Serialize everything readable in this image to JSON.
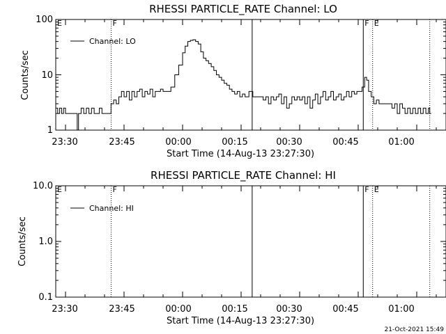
{
  "footer_timestamp": "21-Oct-2021 15:49",
  "chart_data": [
    {
      "type": "line",
      "title": "RHESSI PARTICLE_RATE Channel: LO",
      "xlabel": "Start Time (14-Aug-13 23:27:30)",
      "ylabel": "Counts/sec",
      "y_scale": "log",
      "ylim": [
        1,
        100
      ],
      "xlim": [
        "23:27:30",
        "01:07:30"
      ],
      "x_tick_labels": [
        "23:30",
        "23:45",
        "00:00",
        "00:15",
        "00:30",
        "00:45",
        "01:00"
      ],
      "y_tick_labels": [
        "1",
        "10",
        "100"
      ],
      "legend": {
        "label": "Channel: LO",
        "position": "top-left"
      },
      "markers": [
        {
          "time": "23:27:30",
          "label": "E"
        },
        {
          "time": "23:41:42",
          "label": "F",
          "style": "dotted"
        },
        {
          "time": "00:17:50",
          "label": "",
          "style": "solid"
        },
        {
          "time": "00:46:18",
          "label": "F",
          "style": "solid"
        },
        {
          "time": "00:48:42",
          "label": "E",
          "style": "dotted"
        },
        {
          "time": "01:03:20",
          "label": "",
          "style": "dotted"
        }
      ],
      "series": [
        {
          "name": "Channel: LO",
          "data": [
            [
              "23:27:30",
              2.5
            ],
            [
              "23:28:00",
              2.0
            ],
            [
              "23:28:30",
              2.5
            ],
            [
              "23:29:00",
              2.0
            ],
            [
              "23:29:30",
              2.5
            ],
            [
              "23:30:00",
              2.0
            ],
            [
              "23:31:00",
              2.0
            ],
            [
              "23:32:00",
              2.0
            ],
            [
              "23:32:30",
              2.0
            ],
            [
              "23:33:00",
              1.0
            ],
            [
              "23:33:20",
              2.0
            ],
            [
              "23:34:00",
              2.5
            ],
            [
              "23:34:40",
              2.0
            ],
            [
              "23:35:20",
              2.5
            ],
            [
              "23:36:00",
              2.0
            ],
            [
              "23:36:40",
              2.5
            ],
            [
              "23:37:20",
              2.0
            ],
            [
              "23:38:00",
              2.0
            ],
            [
              "23:38:40",
              2.5
            ],
            [
              "23:39:20",
              2.0
            ],
            [
              "23:40:00",
              2.0
            ],
            [
              "23:41:00",
              2.0
            ],
            [
              "23:41:40",
              3.0
            ],
            [
              "23:42:20",
              3.5
            ],
            [
              "23:43:00",
              3.0
            ],
            [
              "23:43:40",
              4.0
            ],
            [
              "23:44:20",
              5.0
            ],
            [
              "23:45:00",
              4.0
            ],
            [
              "23:45:40",
              5.0
            ],
            [
              "23:46:20",
              3.5
            ],
            [
              "23:47:00",
              5.0
            ],
            [
              "23:47:40",
              4.0
            ],
            [
              "23:48:20",
              5.0
            ],
            [
              "23:49:00",
              5.5
            ],
            [
              "23:49:40",
              4.0
            ],
            [
              "23:50:20",
              5.0
            ],
            [
              "23:51:00",
              4.5
            ],
            [
              "23:51:40",
              5.5
            ],
            [
              "23:52:20",
              4.0
            ],
            [
              "23:53:00",
              5.0
            ],
            [
              "23:53:40",
              5.0
            ],
            [
              "23:54:20",
              5.5
            ],
            [
              "23:55:00",
              5.0
            ],
            [
              "23:56:00",
              5.0
            ],
            [
              "23:57:00",
              6.0
            ],
            [
              "23:58:00",
              10.0
            ],
            [
              "23:59:00",
              15.0
            ],
            [
              "00:00:00",
              25.0
            ],
            [
              "00:00:40",
              33.0
            ],
            [
              "00:01:20",
              40.0
            ],
            [
              "00:02:00",
              42.0
            ],
            [
              "00:02:40",
              43.0
            ],
            [
              "00:03:20",
              40.0
            ],
            [
              "00:04:00",
              36.0
            ],
            [
              "00:04:40",
              26.0
            ],
            [
              "00:05:20",
              20.0
            ],
            [
              "00:06:00",
              18.0
            ],
            [
              "00:06:40",
              16.0
            ],
            [
              "00:07:20",
              14.0
            ],
            [
              "00:08:00",
              12.0
            ],
            [
              "00:08:40",
              10.0
            ],
            [
              "00:09:20",
              9.0
            ],
            [
              "00:10:00",
              8.0
            ],
            [
              "00:10:40",
              7.0
            ],
            [
              "00:11:20",
              6.5
            ],
            [
              "00:12:00",
              5.5
            ],
            [
              "00:12:40",
              5.0
            ],
            [
              "00:13:20",
              4.5
            ],
            [
              "00:14:00",
              5.0
            ],
            [
              "00:14:40",
              4.0
            ],
            [
              "00:15:20",
              4.5
            ],
            [
              "00:16:00",
              4.0
            ],
            [
              "00:17:00",
              5.0
            ],
            [
              "00:18:00",
              4.0
            ],
            [
              "00:19:00",
              4.0
            ],
            [
              "00:20:00",
              4.0
            ],
            [
              "00:20:40",
              3.5
            ],
            [
              "00:21:20",
              4.0
            ],
            [
              "00:22:00",
              3.0
            ],
            [
              "00:22:40",
              4.0
            ],
            [
              "00:23:20",
              3.5
            ],
            [
              "00:24:00",
              4.0
            ],
            [
              "00:24:40",
              4.5
            ],
            [
              "00:25:20",
              3.0
            ],
            [
              "00:26:00",
              4.0
            ],
            [
              "00:26:40",
              2.5
            ],
            [
              "00:27:20",
              3.0
            ],
            [
              "00:28:00",
              4.0
            ],
            [
              "00:28:40",
              3.5
            ],
            [
              "00:29:20",
              4.0
            ],
            [
              "00:30:00",
              3.5
            ],
            [
              "00:30:40",
              4.0
            ],
            [
              "00:31:20",
              3.0
            ],
            [
              "00:32:00",
              4.0
            ],
            [
              "00:32:40",
              2.5
            ],
            [
              "00:33:20",
              3.5
            ],
            [
              "00:34:00",
              4.5
            ],
            [
              "00:34:40",
              3.0
            ],
            [
              "00:35:20",
              4.0
            ],
            [
              "00:36:00",
              5.0
            ],
            [
              "00:36:40",
              3.5
            ],
            [
              "00:37:20",
              4.0
            ],
            [
              "00:38:00",
              5.0
            ],
            [
              "00:38:40",
              3.5
            ],
            [
              "00:39:20",
              4.0
            ],
            [
              "00:40:00",
              4.5
            ],
            [
              "00:40:40",
              3.5
            ],
            [
              "00:41:20",
              4.0
            ],
            [
              "00:42:00",
              5.0
            ],
            [
              "00:42:40",
              4.0
            ],
            [
              "00:43:20",
              5.0
            ],
            [
              "00:44:00",
              4.5
            ],
            [
              "00:44:40",
              5.0
            ],
            [
              "00:45:20",
              5.0
            ],
            [
              "00:46:00",
              6.0
            ],
            [
              "00:46:40",
              9.0
            ],
            [
              "00:47:10",
              8.0
            ],
            [
              "00:47:40",
              5.0
            ],
            [
              "00:48:20",
              4.0
            ],
            [
              "00:49:00",
              3.0
            ],
            [
              "00:49:40",
              3.5
            ],
            [
              "00:50:20",
              3.0
            ],
            [
              "00:51:00",
              3.0
            ],
            [
              "00:52:00",
              3.0
            ],
            [
              "00:53:00",
              3.0
            ],
            [
              "00:53:40",
              2.5
            ],
            [
              "00:54:20",
              3.0
            ],
            [
              "00:55:00",
              2.0
            ],
            [
              "00:55:40",
              3.0
            ],
            [
              "00:56:20",
              2.5
            ],
            [
              "00:57:00",
              2.0
            ],
            [
              "00:57:40",
              2.5
            ],
            [
              "00:58:20",
              2.0
            ],
            [
              "00:59:00",
              2.5
            ],
            [
              "00:59:40",
              2.0
            ],
            [
              "01:00:20",
              2.5
            ],
            [
              "01:01:00",
              2.0
            ],
            [
              "01:01:40",
              2.5
            ],
            [
              "01:02:20",
              2.0
            ],
            [
              "01:03:00",
              2.5
            ],
            [
              "01:03:20",
              2.0
            ]
          ]
        }
      ]
    },
    {
      "type": "line",
      "title": "RHESSI PARTICLE_RATE Channel: HI",
      "xlabel": "Start Time (14-Aug-13 23:27:30)",
      "ylabel": "Counts/sec",
      "y_scale": "log",
      "ylim": [
        0.1,
        10
      ],
      "xlim": [
        "23:27:30",
        "01:07:30"
      ],
      "x_tick_labels": [
        "23:30",
        "23:45",
        "00:00",
        "00:15",
        "00:30",
        "00:45",
        "01:00"
      ],
      "y_tick_labels": [
        "0.1",
        "1.0",
        "10.0"
      ],
      "legend": {
        "label": "Channel: HI",
        "position": "top-left"
      },
      "markers": [
        {
          "time": "23:27:30",
          "label": "E"
        },
        {
          "time": "23:41:42",
          "label": "F",
          "style": "dotted"
        },
        {
          "time": "00:17:50",
          "label": "",
          "style": "solid"
        },
        {
          "time": "00:46:18",
          "label": "F",
          "style": "solid"
        },
        {
          "time": "00:48:42",
          "label": "E",
          "style": "dotted"
        },
        {
          "time": "01:03:20",
          "label": "",
          "style": "dotted"
        }
      ],
      "series": [
        {
          "name": "Channel: HI",
          "data": []
        }
      ]
    }
  ]
}
